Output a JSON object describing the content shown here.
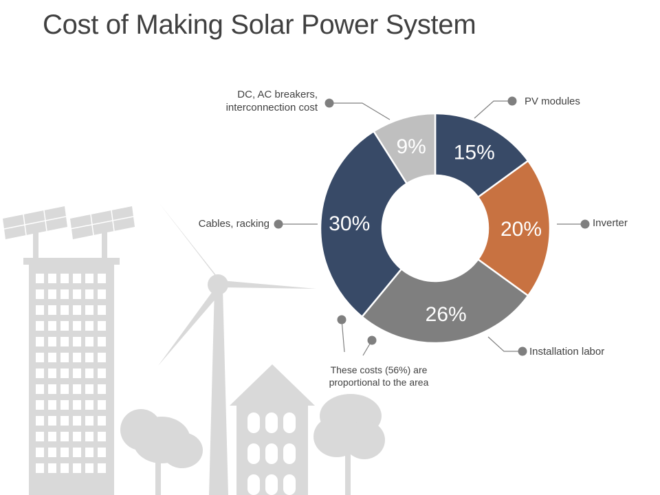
{
  "chart_data": {
    "type": "pie",
    "title": "Cost of Making Solar Power System",
    "slices": [
      {
        "name": "PV modules",
        "value": 15,
        "label": "15%",
        "color": "#384a67"
      },
      {
        "name": "Inverter",
        "value": 20,
        "label": "20%",
        "color": "#c87241"
      },
      {
        "name": "Installation labor",
        "value": 26,
        "label": "26%",
        "color": "#7f7f7f"
      },
      {
        "name": "Cables, racking",
        "value": 30,
        "label": "30%",
        "color": "#384a67"
      },
      {
        "name": "DC, AC breakers, interconnection cost",
        "value": 9,
        "label": "9%",
        "color": "#bfbfbf"
      }
    ],
    "annotation": "These costs (56%) are proportional to the area"
  },
  "colors": {
    "title": "#404040",
    "callout": "#7f7f7f",
    "scene": "#d9d9d9"
  }
}
